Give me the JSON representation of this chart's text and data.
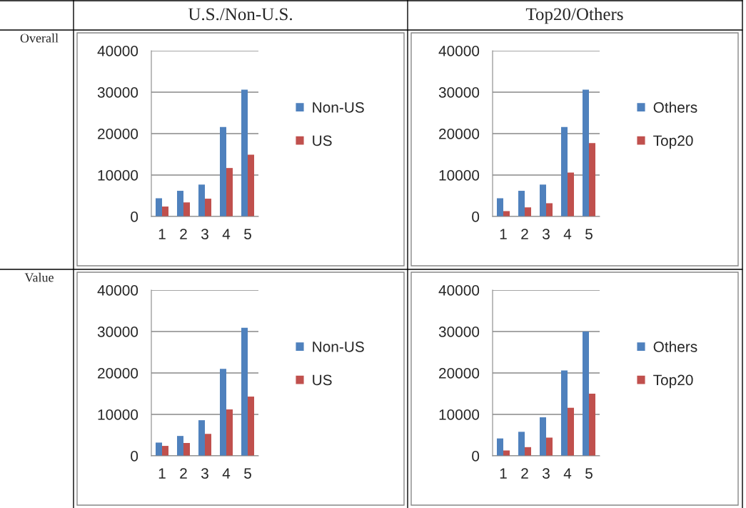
{
  "chart_data": [
    {
      "type": "bar",
      "title": "U.S./Non-U.S.",
      "annotations": [
        "Overall"
      ],
      "categories": [
        "1",
        "2",
        "3",
        "4",
        "5"
      ],
      "series": [
        {
          "name": "Non-US",
          "color": "#4f81bd",
          "values": [
            4400,
            6200,
            7700,
            21600,
            30600
          ]
        },
        {
          "name": "US",
          "color": "#c0504d",
          "values": [
            2400,
            3400,
            4300,
            11700,
            14900
          ]
        }
      ],
      "ylim": [
        0,
        40000
      ],
      "yticks": [
        0,
        10000,
        20000,
        30000,
        40000
      ],
      "grid": "y",
      "legend": "right"
    },
    {
      "type": "bar",
      "title": "Top20/Others",
      "categories": [
        "1",
        "2",
        "3",
        "4",
        "5"
      ],
      "series": [
        {
          "name": "Others",
          "color": "#4f81bd",
          "values": [
            4400,
            6200,
            7700,
            21600,
            30600
          ]
        },
        {
          "name": "Top20",
          "color": "#c0504d",
          "values": [
            1300,
            2200,
            3200,
            10600,
            17700
          ]
        }
      ],
      "ylim": [
        0,
        40000
      ],
      "yticks": [
        0,
        10000,
        20000,
        30000,
        40000
      ],
      "grid": "y",
      "legend": "right"
    },
    {
      "type": "bar",
      "annotations": [
        "Value"
      ],
      "categories": [
        "1",
        "2",
        "3",
        "4",
        "5"
      ],
      "series": [
        {
          "name": "Non-US",
          "color": "#4f81bd",
          "values": [
            3200,
            4800,
            8600,
            21000,
            30900
          ]
        },
        {
          "name": "US",
          "color": "#c0504d",
          "values": [
            2400,
            3100,
            5300,
            11200,
            14300
          ]
        }
      ],
      "ylim": [
        0,
        40000
      ],
      "yticks": [
        0,
        10000,
        20000,
        30000,
        40000
      ],
      "grid": "y",
      "legend": "right"
    },
    {
      "type": "bar",
      "categories": [
        "1",
        "2",
        "3",
        "4",
        "5"
      ],
      "series": [
        {
          "name": "Others",
          "color": "#4f81bd",
          "values": [
            4200,
            5800,
            9300,
            20600,
            30000
          ]
        },
        {
          "name": "Top20",
          "color": "#c0504d",
          "values": [
            1300,
            2100,
            4400,
            11600,
            15000
          ]
        }
      ],
      "ylim": [
        0,
        40000
      ],
      "yticks": [
        0,
        10000,
        20000,
        30000,
        40000
      ],
      "grid": "y",
      "legend": "right"
    }
  ]
}
